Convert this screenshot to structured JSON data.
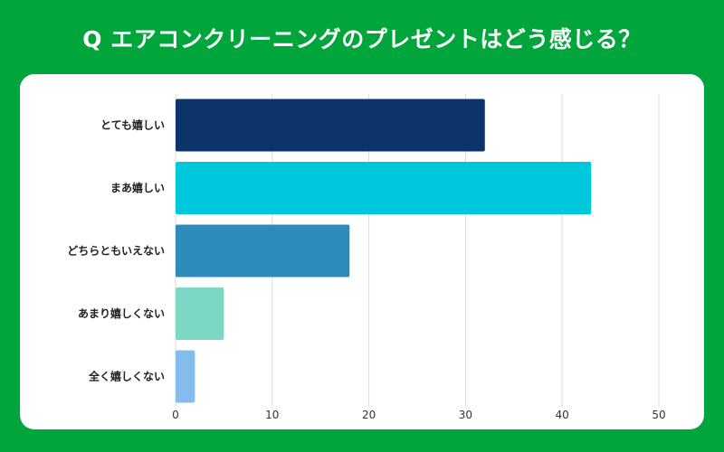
{
  "title": "Q エアコンクリーニングのプレゼントはどう感じる？",
  "colors": {
    "background": "#00a63c",
    "card": "#ffffff",
    "grid": "#dcdcdc"
  },
  "chart_data": {
    "type": "bar",
    "orientation": "horizontal",
    "title": "Q エアコンクリーニングのプレゼントはどう感じる？",
    "xlabel": "",
    "ylabel": "",
    "categories": [
      "とても嬉しい",
      "まあ嬉しい",
      "どちらともいえない",
      "あまり嬉しくない",
      "全く嬉しくない"
    ],
    "values": [
      32,
      43,
      18,
      5,
      2
    ],
    "colors": [
      "#0d3468",
      "#00c8dc",
      "#2d8bbc",
      "#7dd7c5",
      "#84bcec"
    ],
    "xlim": [
      0,
      50
    ],
    "ticks": [
      0,
      10,
      20,
      30,
      40,
      50
    ],
    "grid": true
  }
}
